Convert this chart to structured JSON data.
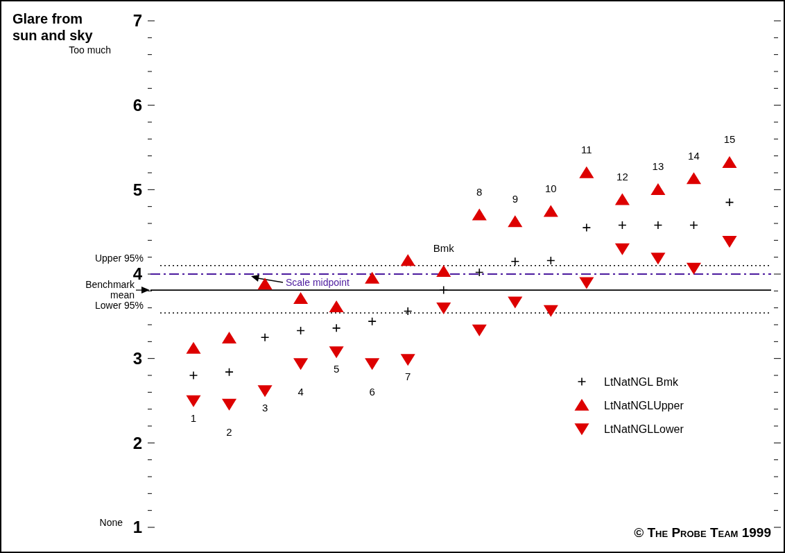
{
  "chart_data": {
    "type": "scatter",
    "title": "Glare from sun and sky",
    "categories": [
      "1",
      "2",
      "3",
      "4",
      "5",
      "6",
      "7",
      "Bmk",
      "8",
      "9",
      "10",
      "11",
      "12",
      "13",
      "14",
      "15"
    ],
    "series": [
      {
        "name": "LtNatNGL Bmk",
        "color": "#000000",
        "marker": "cross",
        "values": [
          2.8,
          2.84,
          3.25,
          3.33,
          3.36,
          3.44,
          3.56,
          3.81,
          4.02,
          4.15,
          4.16,
          4.55,
          4.58,
          4.58,
          4.58,
          4.85
        ]
      },
      {
        "name": "LtNatNGLUpper",
        "color": "#dd0000",
        "marker": "triangle",
        "values": [
          3.12,
          3.24,
          3.88,
          3.71,
          3.61,
          3.95,
          4.16,
          4.03,
          4.7,
          4.62,
          4.74,
          5.2,
          4.88,
          5.0,
          5.13,
          5.32
        ]
      },
      {
        "name": "LtNatNGLLower",
        "color": "#dd0000",
        "marker": "triangle-down",
        "values": [
          2.5,
          2.46,
          2.62,
          2.94,
          3.08,
          2.94,
          2.99,
          3.6,
          3.34,
          3.67,
          3.57,
          3.9,
          4.3,
          4.19,
          4.07,
          4.39
        ]
      }
    ],
    "ylim": [
      1,
      7
    ],
    "yticks": [
      1,
      {
        "value": 1.2,
        "label": null
      },
      {
        "value": 1.4,
        "label": null
      },
      {
        "value": 1.6,
        "label": null
      },
      {
        "value": 1.8,
        "label": null
      },
      2,
      {
        "value": 2.2,
        "label": null
      },
      {
        "value": 2.4,
        "label": null
      },
      {
        "value": 2.6,
        "label": null
      },
      {
        "value": 2.8,
        "label": null
      },
      3,
      {
        "value": 3.2,
        "label": null
      },
      {
        "value": 3.4,
        "label": null
      },
      {
        "value": 3.6,
        "label": null
      },
      {
        "value": 3.8,
        "label": null
      },
      4,
      {
        "value": 4.2,
        "label": null
      },
      {
        "value": 4.4,
        "label": null
      },
      {
        "value": 4.6,
        "label": null
      },
      {
        "value": 4.8,
        "label": null
      },
      5,
      {
        "value": 5.2,
        "label": null
      },
      {
        "value": 5.4,
        "label": null
      },
      {
        "value": 5.6,
        "label": null
      },
      {
        "value": 5.8,
        "label": null
      },
      6,
      {
        "value": 6.2,
        "label": null
      },
      {
        "value": 6.4,
        "label": null
      },
      {
        "value": 6.6,
        "label": null
      },
      {
        "value": 6.8,
        "label": null
      },
      7
    ],
    "ref_lines": [
      {
        "axis": "y",
        "value": 4.1,
        "label": "Upper 95%",
        "color": "#000000",
        "line_style": "dotted"
      },
      {
        "axis": "y",
        "value": 4,
        "label": "Scale midpoint",
        "color": "#4b1a9e",
        "line_style": "dashed"
      },
      {
        "axis": "y",
        "value": 3.81,
        "label": "Benchmark mean",
        "color": "#000000",
        "line_style": "solid"
      },
      {
        "axis": "y",
        "value": 3.54,
        "label": "Lower 95%",
        "color": "#000000",
        "line_style": "dotted"
      }
    ],
    "annotations": [
      "Too much",
      "None",
      "© The Probe Team 1999"
    ],
    "legend": "bottom right",
    "grid": false
  }
}
